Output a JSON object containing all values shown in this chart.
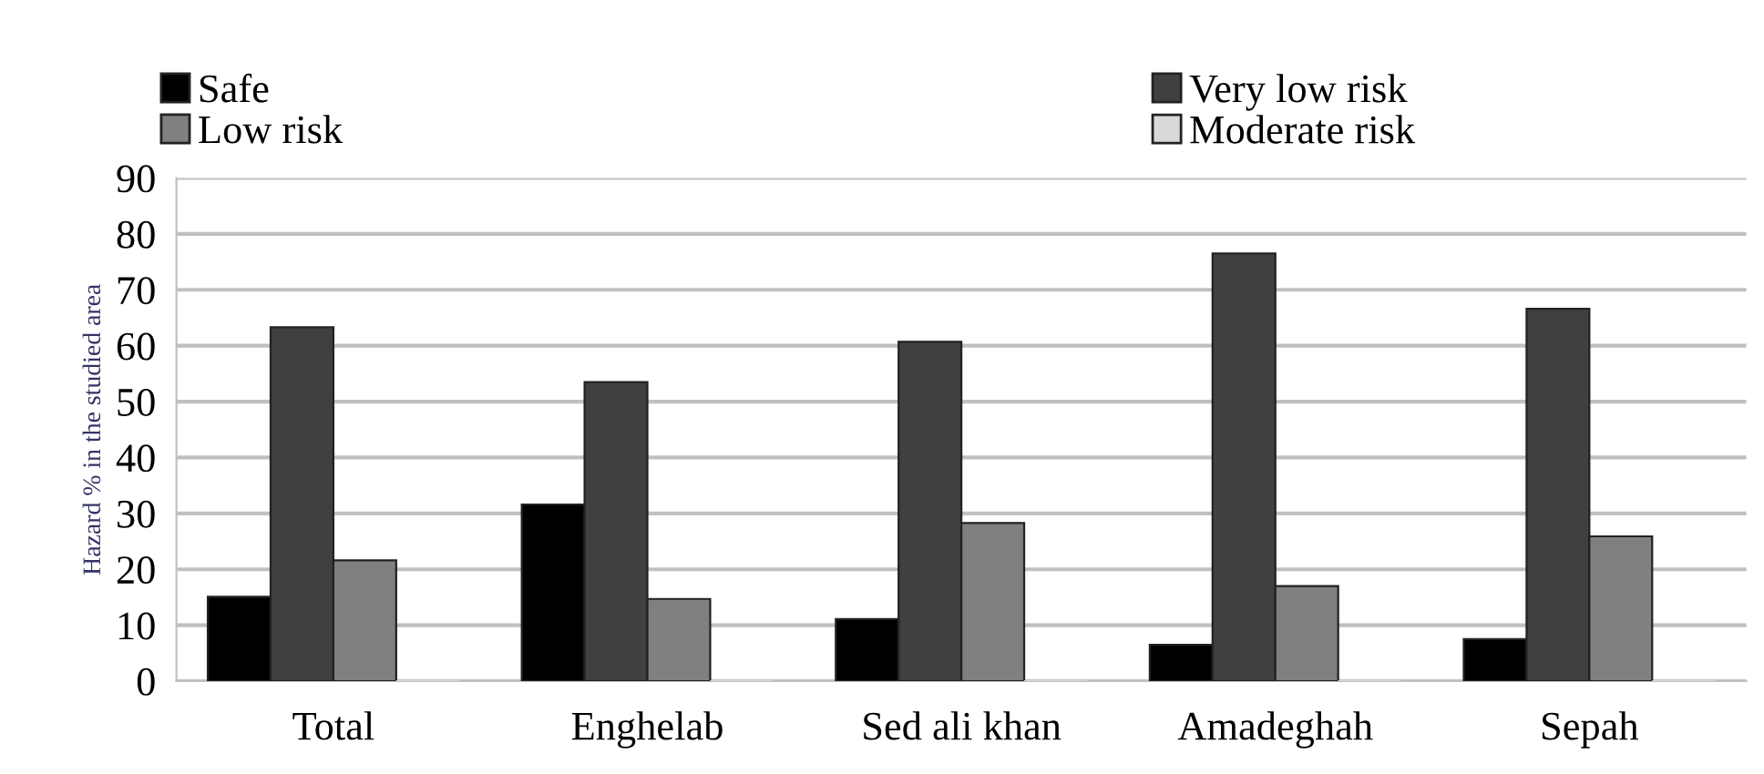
{
  "chart_data": {
    "type": "bar",
    "ylabel": "Hazard % in the studied area",
    "categories": [
      "Total",
      "Enghelab",
      "Sed ali khan",
      "Amadeghah",
      "Sepah"
    ],
    "series": [
      {
        "name": "Safe",
        "color": "#000000",
        "values": [
          15.1,
          31.6,
          11.1,
          6.5,
          7.5
        ]
      },
      {
        "name": "Very low risk",
        "color": "#404040",
        "values": [
          63.3,
          53.5,
          60.7,
          76.5,
          66.6
        ]
      },
      {
        "name": "Low risk",
        "color": "#808080",
        "values": [
          21.6,
          14.7,
          28.3,
          17.0,
          25.9
        ]
      },
      {
        "name": "Moderate risk",
        "color": "#d9d9d9",
        "values": [
          0,
          0,
          0,
          0,
          0
        ]
      }
    ],
    "ylim": [
      0,
      90
    ],
    "yticks": [
      0,
      10,
      20,
      30,
      40,
      50,
      60,
      70,
      80,
      90
    ],
    "grid": "y",
    "legend": "top left"
  }
}
